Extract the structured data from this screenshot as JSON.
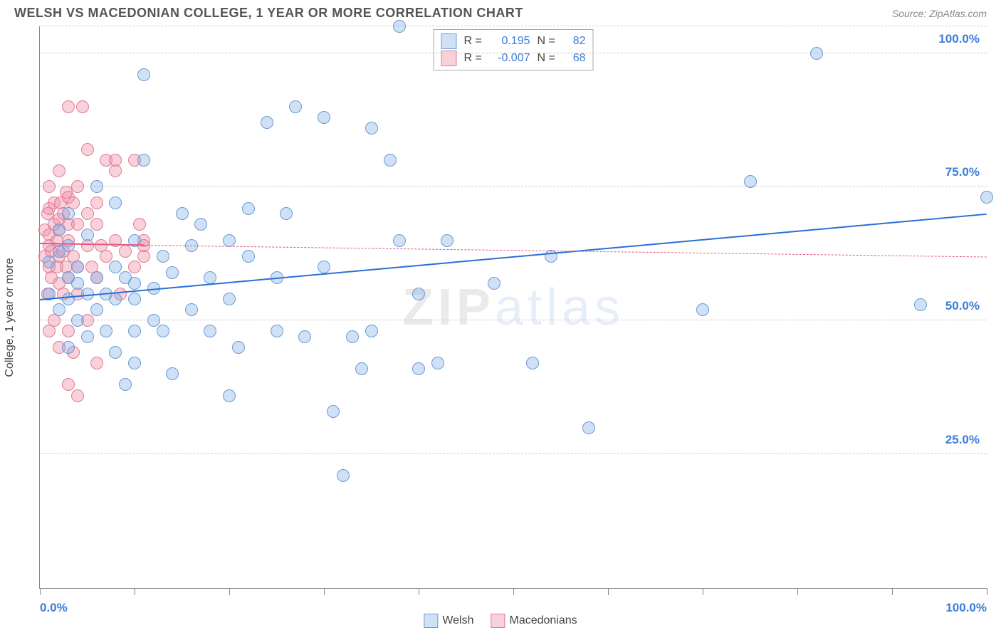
{
  "title": "WELSH VS MACEDONIAN COLLEGE, 1 YEAR OR MORE CORRELATION CHART",
  "source": "Source: ZipAtlas.com",
  "y_axis_label": "College, 1 year or more",
  "watermark_a": "ZIP",
  "watermark_b": "atlas",
  "chart": {
    "type": "scatter",
    "xlim": [
      0,
      100
    ],
    "ylim": [
      0,
      105
    ],
    "x_ticks_minor": [
      0,
      10,
      20,
      30,
      40,
      50,
      60,
      70,
      80,
      90,
      100
    ],
    "x_tick_labels": [
      {
        "x": 0,
        "label": "0.0%"
      },
      {
        "x": 100,
        "label": "100.0%"
      }
    ],
    "y_gridlines": [
      25,
      50,
      75,
      100,
      105
    ],
    "y_tick_labels": [
      {
        "y": 25,
        "label": "25.0%"
      },
      {
        "y": 50,
        "label": "50.0%"
      },
      {
        "y": 75,
        "label": "75.0%"
      },
      {
        "y": 100,
        "label": "100.0%"
      }
    ],
    "background_color": "#ffffff",
    "grid_color": "#cccccc",
    "point_radius": 9,
    "point_border_width": 1.2,
    "series": {
      "welsh": {
        "label": "Welsh",
        "fill": "rgba(120,165,225,0.35)",
        "stroke": "#6a9bd8",
        "points": [
          [
            1,
            55
          ],
          [
            1,
            61
          ],
          [
            2,
            52
          ],
          [
            2,
            63
          ],
          [
            2,
            67
          ],
          [
            3,
            45
          ],
          [
            3,
            54
          ],
          [
            3,
            58
          ],
          [
            3,
            64
          ],
          [
            3,
            70
          ],
          [
            4,
            50
          ],
          [
            4,
            57
          ],
          [
            4,
            60
          ],
          [
            5,
            47
          ],
          [
            5,
            55
          ],
          [
            5,
            66
          ],
          [
            6,
            52
          ],
          [
            6,
            58
          ],
          [
            6,
            75
          ],
          [
            7,
            48
          ],
          [
            7,
            55
          ],
          [
            8,
            44
          ],
          [
            8,
            54
          ],
          [
            8,
            60
          ],
          [
            8,
            72
          ],
          [
            9,
            38
          ],
          [
            9,
            58
          ],
          [
            10,
            42
          ],
          [
            10,
            48
          ],
          [
            10,
            54
          ],
          [
            10,
            57
          ],
          [
            10,
            65
          ],
          [
            11,
            80
          ],
          [
            12,
            50
          ],
          [
            12,
            56
          ],
          [
            13,
            48
          ],
          [
            13,
            62
          ],
          [
            14,
            40
          ],
          [
            14,
            59
          ],
          [
            15,
            70
          ],
          [
            16,
            52
          ],
          [
            16,
            64
          ],
          [
            17,
            68
          ],
          [
            18,
            48
          ],
          [
            18,
            58
          ],
          [
            20,
            36
          ],
          [
            20,
            54
          ],
          [
            20,
            65
          ],
          [
            21,
            45
          ],
          [
            22,
            62
          ],
          [
            22,
            71
          ],
          [
            24,
            87
          ],
          [
            25,
            48
          ],
          [
            25,
            58
          ],
          [
            26,
            70
          ],
          [
            27,
            90
          ],
          [
            28,
            47
          ],
          [
            30,
            60
          ],
          [
            30,
            88
          ],
          [
            31,
            33
          ],
          [
            32,
            21
          ],
          [
            33,
            47
          ],
          [
            34,
            41
          ],
          [
            35,
            86
          ],
          [
            35,
            48
          ],
          [
            37,
            80
          ],
          [
            38,
            65
          ],
          [
            38,
            105
          ],
          [
            40,
            41
          ],
          [
            40,
            55
          ],
          [
            42,
            42
          ],
          [
            43,
            65
          ],
          [
            48,
            57
          ],
          [
            52,
            42
          ],
          [
            54,
            62
          ],
          [
            58,
            30
          ],
          [
            70,
            52
          ],
          [
            75,
            76
          ],
          [
            82,
            100
          ],
          [
            93,
            53
          ],
          [
            100,
            73
          ],
          [
            11,
            96
          ]
        ],
        "regression": {
          "x1": 0,
          "y1": 54,
          "x2": 100,
          "y2": 70,
          "color": "#2a6fd6",
          "width": 2.5,
          "dash": "none"
        }
      },
      "macedonians": {
        "label": "Macedonians",
        "fill": "rgba(238,140,165,0.4)",
        "stroke": "#e27a98",
        "points": [
          [
            0.5,
            62
          ],
          [
            0.5,
            67
          ],
          [
            0.8,
            55
          ],
          [
            0.8,
            70
          ],
          [
            1,
            48
          ],
          [
            1,
            60
          ],
          [
            1,
            64
          ],
          [
            1,
            66
          ],
          [
            1,
            71
          ],
          [
            1,
            75
          ],
          [
            1.2,
            58
          ],
          [
            1.2,
            63
          ],
          [
            1.5,
            50
          ],
          [
            1.5,
            68
          ],
          [
            1.5,
            72
          ],
          [
            1.8,
            60
          ],
          [
            1.8,
            65
          ],
          [
            2,
            45
          ],
          [
            2,
            57
          ],
          [
            2,
            62
          ],
          [
            2,
            67
          ],
          [
            2,
            69
          ],
          [
            2,
            78
          ],
          [
            2.2,
            72
          ],
          [
            2.5,
            55
          ],
          [
            2.5,
            63
          ],
          [
            2.5,
            70
          ],
          [
            2.8,
            60
          ],
          [
            2.8,
            74
          ],
          [
            3,
            38
          ],
          [
            3,
            48
          ],
          [
            3,
            58
          ],
          [
            3,
            65
          ],
          [
            3,
            68
          ],
          [
            3,
            73
          ],
          [
            3,
            90
          ],
          [
            3.5,
            44
          ],
          [
            3.5,
            62
          ],
          [
            3.5,
            72
          ],
          [
            4,
            36
          ],
          [
            4,
            55
          ],
          [
            4,
            60
          ],
          [
            4,
            68
          ],
          [
            4,
            75
          ],
          [
            4.5,
            90
          ],
          [
            5,
            50
          ],
          [
            5,
            64
          ],
          [
            5,
            70
          ],
          [
            5,
            82
          ],
          [
            5.5,
            60
          ],
          [
            6,
            42
          ],
          [
            6,
            58
          ],
          [
            6,
            68
          ],
          [
            6,
            72
          ],
          [
            6.5,
            64
          ],
          [
            7,
            80
          ],
          [
            7,
            62
          ],
          [
            8,
            78
          ],
          [
            8,
            80
          ],
          [
            8,
            65
          ],
          [
            8.5,
            55
          ],
          [
            9,
            63
          ],
          [
            10,
            80
          ],
          [
            10,
            60
          ],
          [
            10.5,
            68
          ],
          [
            11,
            62
          ],
          [
            11,
            65
          ],
          [
            11,
            64
          ]
        ],
        "regression": {
          "x1": 0,
          "y1": 64.5,
          "x2": 11,
          "y2": 64.2,
          "color": "#e05a85",
          "width": 2.5,
          "dash": "none",
          "extend_dash_to": 100,
          "extend_y2": 62
        }
      }
    }
  },
  "stats": [
    {
      "swatch_fill": "rgba(120,165,225,0.35)",
      "swatch_stroke": "#6a9bd8",
      "r": "0.195",
      "n": "82"
    },
    {
      "swatch_fill": "rgba(238,140,165,0.4)",
      "swatch_stroke": "#e27a98",
      "r": "-0.007",
      "n": "68"
    }
  ],
  "legend": [
    {
      "swatch_fill": "rgba(120,165,225,0.35)",
      "swatch_stroke": "#6a9bd8",
      "label": "Welsh"
    },
    {
      "swatch_fill": "rgba(238,140,165,0.4)",
      "swatch_stroke": "#e27a98",
      "label": "Macedonians"
    }
  ],
  "labels": {
    "r_eq": "R =",
    "n_eq": "N ="
  }
}
